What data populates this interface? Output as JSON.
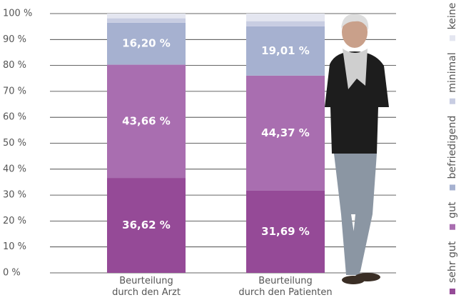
{
  "chart_data": {
    "type": "stacked_bar",
    "categories": [
      "Beurteilung\ndurch den Arzt",
      "Beurteilung\ndurch den Patienten"
    ],
    "series": [
      {
        "name": "sehr gut",
        "color": "#954a97",
        "values": [
          36.62,
          31.69
        ],
        "value_labels": [
          "36,62 %",
          "31,69 %"
        ]
      },
      {
        "name": "gut",
        "color": "#a96eb0",
        "values": [
          43.66,
          44.37
        ],
        "value_labels": [
          "43,66 %",
          "44,37 %"
        ]
      },
      {
        "name": "befriedigend",
        "color": "#a6b1d0",
        "values": [
          16.2,
          19.01
        ],
        "value_labels": [
          "16,20 %",
          "19,01 %"
        ]
      },
      {
        "name": "minimal",
        "color": "#c8cde2",
        "values": [
          1.7,
          2.0
        ]
      },
      {
        "name": "keine",
        "color": "#e4e6f0",
        "values": [
          1.82,
          2.93
        ]
      }
    ],
    "ylim": [
      0,
      100
    ],
    "yticks": [
      {
        "value": 0,
        "label": "0 %"
      },
      {
        "value": 10,
        "label": "10 %"
      },
      {
        "value": 20,
        "label": "20 %"
      },
      {
        "value": 30,
        "label": "30 %"
      },
      {
        "value": 40,
        "label": "40 %"
      },
      {
        "value": 50,
        "label": "50 %"
      },
      {
        "value": 60,
        "label": "60 %"
      },
      {
        "value": 70,
        "label": "70 %"
      },
      {
        "value": 80,
        "label": "80 %"
      },
      {
        "value": 90,
        "label": "90 %"
      },
      {
        "value": 100,
        "label": "100 %"
      }
    ],
    "grid": true,
    "legend": "right"
  }
}
